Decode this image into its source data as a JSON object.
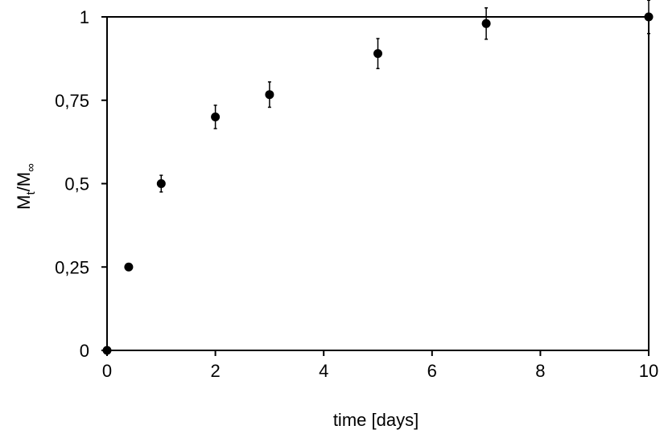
{
  "chart_data": {
    "type": "scatter",
    "title": "",
    "xlabel": "time [days]",
    "ylabel": {
      "main": "M",
      "sub1": "t",
      "sep": "/M",
      "sub2": "∞"
    },
    "xlim": [
      0,
      10
    ],
    "ylim": [
      0,
      1
    ],
    "x_ticks": [
      0,
      2,
      4,
      6,
      8,
      10
    ],
    "x_tick_labels": [
      "0",
      "2",
      "4",
      "6",
      "8",
      "10"
    ],
    "y_ticks": [
      0,
      0.25,
      0.5,
      0.75,
      1
    ],
    "y_tick_labels": [
      "0",
      "0,25",
      "0,5",
      "0,75",
      "1"
    ],
    "grid": false,
    "marker_color": "#000000",
    "series": [
      {
        "points": [
          {
            "x": 0,
            "y": 0,
            "err": 0
          },
          {
            "x": 0.4,
            "y": 0.25,
            "err": 0.01
          },
          {
            "x": 1,
            "y": 0.5,
            "err": 0.025
          },
          {
            "x": 2,
            "y": 0.7,
            "err": 0.035
          },
          {
            "x": 3,
            "y": 0.767,
            "err": 0.038
          },
          {
            "x": 5,
            "y": 0.89,
            "err": 0.045
          },
          {
            "x": 7,
            "y": 0.98,
            "err": 0.047
          },
          {
            "x": 10,
            "y": 1.0,
            "err": 0.05
          }
        ]
      }
    ]
  }
}
